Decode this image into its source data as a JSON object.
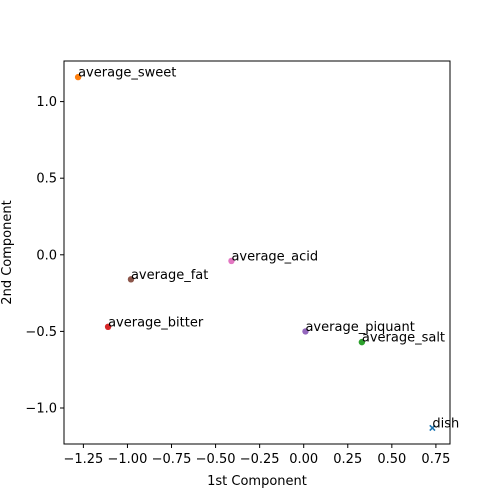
{
  "chart_data": {
    "type": "scatter",
    "title": "",
    "xlabel": "1st Component",
    "ylabel": "2nd Component",
    "xlim": [
      -1.36,
      0.83
    ],
    "ylim": [
      -1.235,
      1.265
    ],
    "grid": false,
    "xticks": [
      -1.25,
      -1.0,
      -0.75,
      -0.5,
      -0.25,
      0.0,
      0.25,
      0.5,
      0.75
    ],
    "xtick_labels": [
      "−1.25",
      "−1.00",
      "−0.75",
      "−0.50",
      "−0.25",
      "0.00",
      "0.25",
      "0.50",
      "0.75"
    ],
    "yticks": [
      -1.0,
      -0.5,
      0.0,
      0.5,
      1.0
    ],
    "ytick_labels": [
      "−1.0",
      "−0.5",
      "0.0",
      "0.5",
      "1.0"
    ],
    "points": [
      {
        "label": "dish",
        "x": 0.73,
        "y": -1.13,
        "color": "#1f77b4",
        "marker": "x"
      },
      {
        "label": "average_sweet",
        "x": -1.28,
        "y": 1.16,
        "color": "#ff7f0e",
        "marker": "o"
      },
      {
        "label": "average_salt",
        "x": 0.33,
        "y": -0.57,
        "color": "#2ca02c",
        "marker": "o"
      },
      {
        "label": "average_bitter",
        "x": -1.11,
        "y": -0.47,
        "color": "#d62728",
        "marker": "o"
      },
      {
        "label": "average_piquant",
        "x": 0.01,
        "y": -0.5,
        "color": "#9467bd",
        "marker": "o"
      },
      {
        "label": "average_fat",
        "x": -0.98,
        "y": -0.16,
        "color": "#8c564b",
        "marker": "o"
      },
      {
        "label": "average_acid",
        "x": -0.41,
        "y": -0.04,
        "color": "#e377c2",
        "marker": "o"
      }
    ]
  }
}
